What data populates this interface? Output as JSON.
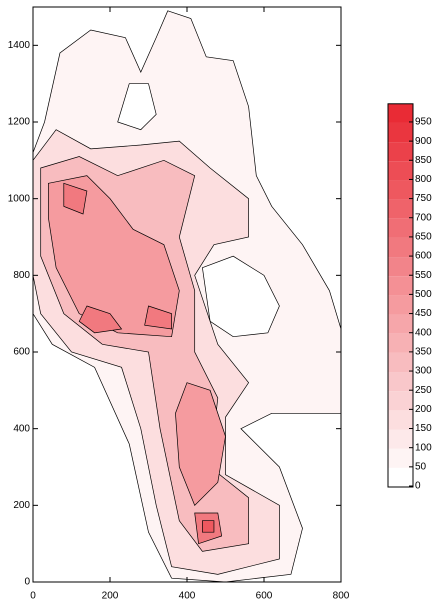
{
  "chart_data": {
    "type": "contour",
    "xlim": [
      0,
      800
    ],
    "ylim": [
      0,
      1500
    ],
    "xticks": [
      0,
      200,
      400,
      600,
      800
    ],
    "yticks": [
      0,
      200,
      400,
      600,
      800,
      1000,
      1200,
      1400
    ],
    "levels": [
      0,
      50,
      100,
      150,
      200,
      250,
      300,
      350,
      400,
      450,
      500,
      550,
      600,
      650,
      700,
      750,
      800,
      850,
      900,
      950
    ],
    "color_low": "#ffffff",
    "color_high": "#e8202a",
    "regions": [
      {
        "level": 50,
        "points": [
          [
            0,
            1120
          ],
          [
            30,
            1200
          ],
          [
            70,
            1380
          ],
          [
            150,
            1440
          ],
          [
            240,
            1420
          ],
          [
            280,
            1330
          ],
          [
            320,
            1420
          ],
          [
            350,
            1490
          ],
          [
            410,
            1470
          ],
          [
            450,
            1370
          ],
          [
            520,
            1360
          ],
          [
            560,
            1240
          ],
          [
            580,
            1060
          ],
          [
            620,
            980
          ],
          [
            700,
            880
          ],
          [
            770,
            760
          ],
          [
            800,
            660
          ],
          [
            800,
            440
          ],
          [
            620,
            440
          ],
          [
            540,
            400
          ],
          [
            640,
            300
          ],
          [
            700,
            140
          ],
          [
            670,
            20
          ],
          [
            500,
            0
          ],
          [
            360,
            10
          ],
          [
            300,
            130
          ],
          [
            250,
            360
          ],
          [
            160,
            560
          ],
          [
            50,
            620
          ],
          [
            0,
            700
          ]
        ]
      },
      {
        "level": 0,
        "points": [
          [
            440,
            820
          ],
          [
            520,
            850
          ],
          [
            600,
            800
          ],
          [
            640,
            720
          ],
          [
            610,
            650
          ],
          [
            520,
            640
          ],
          [
            460,
            680
          ]
        ]
      },
      {
        "level": 0,
        "points": [
          [
            220,
            1200
          ],
          [
            250,
            1300
          ],
          [
            300,
            1300
          ],
          [
            320,
            1220
          ],
          [
            280,
            1180
          ]
        ]
      },
      {
        "level": 150,
        "points": [
          [
            0,
            1100
          ],
          [
            60,
            1180
          ],
          [
            150,
            1130
          ],
          [
            280,
            1140
          ],
          [
            380,
            1150
          ],
          [
            460,
            1080
          ],
          [
            560,
            1000
          ],
          [
            560,
            900
          ],
          [
            470,
            880
          ],
          [
            420,
            800
          ],
          [
            480,
            620
          ],
          [
            560,
            520
          ],
          [
            500,
            430
          ],
          [
            500,
            280
          ],
          [
            640,
            200
          ],
          [
            640,
            60
          ],
          [
            480,
            20
          ],
          [
            360,
            40
          ],
          [
            320,
            200
          ],
          [
            280,
            400
          ],
          [
            230,
            560
          ],
          [
            100,
            600
          ],
          [
            20,
            700
          ],
          [
            0,
            800
          ]
        ]
      },
      {
        "level": 300,
        "points": [
          [
            20,
            1080
          ],
          [
            120,
            1110
          ],
          [
            220,
            1060
          ],
          [
            340,
            1100
          ],
          [
            420,
            1060
          ],
          [
            380,
            900
          ],
          [
            420,
            760
          ],
          [
            420,
            600
          ],
          [
            480,
            480
          ],
          [
            460,
            300
          ],
          [
            560,
            220
          ],
          [
            560,
            100
          ],
          [
            440,
            80
          ],
          [
            380,
            160
          ],
          [
            330,
            400
          ],
          [
            300,
            600
          ],
          [
            180,
            620
          ],
          [
            80,
            700
          ],
          [
            20,
            850
          ]
        ]
      },
      {
        "level": 450,
        "points": [
          [
            40,
            1040
          ],
          [
            140,
            1060
          ],
          [
            200,
            1000
          ],
          [
            260,
            920
          ],
          [
            340,
            880
          ],
          [
            380,
            760
          ],
          [
            360,
            640
          ],
          [
            220,
            650
          ],
          [
            120,
            700
          ],
          [
            60,
            820
          ],
          [
            40,
            950
          ]
        ]
      },
      {
        "level": 450,
        "points": [
          [
            400,
            520
          ],
          [
            460,
            500
          ],
          [
            500,
            380
          ],
          [
            480,
            260
          ],
          [
            420,
            200
          ],
          [
            380,
            300
          ],
          [
            370,
            440
          ]
        ]
      },
      {
        "level": 600,
        "points": [
          [
            80,
            1040
          ],
          [
            140,
            1020
          ],
          [
            130,
            960
          ],
          [
            80,
            980
          ]
        ]
      },
      {
        "level": 600,
        "points": [
          [
            140,
            720
          ],
          [
            200,
            700
          ],
          [
            230,
            660
          ],
          [
            160,
            650
          ],
          [
            120,
            680
          ]
        ]
      },
      {
        "level": 600,
        "points": [
          [
            300,
            720
          ],
          [
            360,
            700
          ],
          [
            360,
            660
          ],
          [
            290,
            670
          ]
        ]
      },
      {
        "level": 600,
        "points": [
          [
            420,
            180
          ],
          [
            480,
            180
          ],
          [
            490,
            120
          ],
          [
            430,
            100
          ]
        ]
      },
      {
        "level": 750,
        "points": [
          [
            440,
            160
          ],
          [
            470,
            160
          ],
          [
            470,
            130
          ],
          [
            440,
            130
          ]
        ]
      }
    ]
  }
}
